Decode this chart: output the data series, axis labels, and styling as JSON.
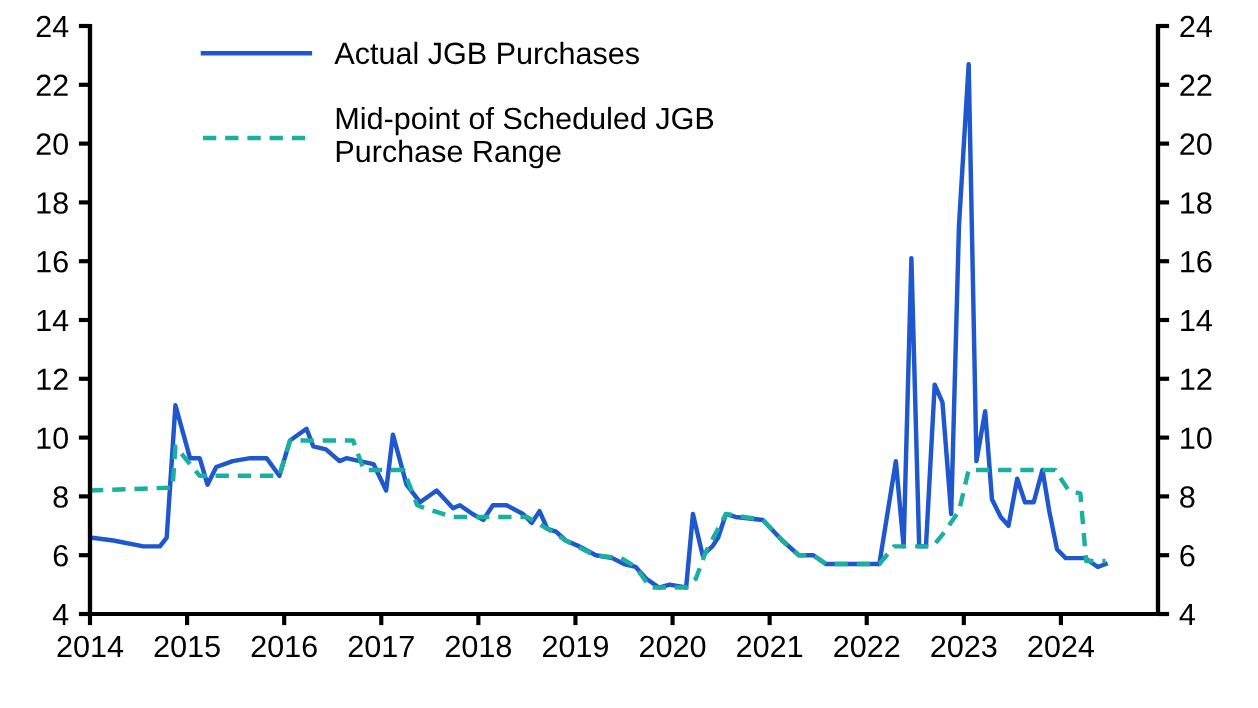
{
  "chart_data": {
    "type": "line",
    "xlim": [
      2014,
      2025
    ],
    "xticks": [
      2014,
      2015,
      2016,
      2017,
      2018,
      2019,
      2020,
      2021,
      2022,
      2023,
      2024
    ],
    "ylim": [
      4,
      24
    ],
    "yticks": [
      4,
      6,
      8,
      10,
      12,
      14,
      16,
      18,
      20,
      22,
      24
    ],
    "y2lim": [
      4,
      24
    ],
    "y2ticks": [
      4,
      6,
      8,
      10,
      12,
      14,
      16,
      18,
      20,
      22,
      24
    ],
    "grid": false,
    "legend": "top left",
    "series": [
      {
        "name": "Actual JGB Purchases",
        "color": "#1f57cf",
        "line_style": "solid",
        "x": [
          2014.0,
          2014.24,
          2014.55,
          2014.72,
          2014.79,
          2014.88,
          2015.03,
          2015.13,
          2015.21,
          2015.3,
          2015.47,
          2015.65,
          2015.82,
          2015.95,
          2016.06,
          2016.23,
          2016.3,
          2016.43,
          2016.57,
          2016.64,
          2016.92,
          2017.05,
          2017.12,
          2017.26,
          2017.4,
          2017.57,
          2017.74,
          2017.81,
          2017.94,
          2018.05,
          2018.15,
          2018.29,
          2018.46,
          2018.55,
          2018.63,
          2018.71,
          2018.8,
          2018.9,
          2019.04,
          2019.21,
          2019.38,
          2019.5,
          2019.62,
          2019.73,
          2019.86,
          2019.97,
          2020.14,
          2020.21,
          2020.31,
          2020.41,
          2020.47,
          2020.55,
          2020.65,
          2020.93,
          2021.13,
          2021.3,
          2021.45,
          2021.58,
          2022.13,
          2022.3,
          2022.38,
          2022.46,
          2022.54,
          2022.61,
          2022.7,
          2022.78,
          2022.87,
          2022.95,
          2023.05,
          2023.13,
          2023.22,
          2023.29,
          2023.38,
          2023.46,
          2023.55,
          2023.63,
          2023.72,
          2023.81,
          2023.88,
          2023.96,
          2024.05,
          2024.25,
          2024.38,
          2024.46
        ],
        "values": [
          6.6,
          6.5,
          6.3,
          6.3,
          6.6,
          11.1,
          9.3,
          9.3,
          8.4,
          9.0,
          9.2,
          9.3,
          9.3,
          8.7,
          9.9,
          10.3,
          9.7,
          9.6,
          9.2,
          9.3,
          9.1,
          8.2,
          10.1,
          8.4,
          7.8,
          8.2,
          7.6,
          7.7,
          7.4,
          7.2,
          7.7,
          7.7,
          7.4,
          7.1,
          7.5,
          6.9,
          6.8,
          6.5,
          6.3,
          6.0,
          5.9,
          5.7,
          5.6,
          5.2,
          4.9,
          5.0,
          4.9,
          7.4,
          6.0,
          6.3,
          6.6,
          7.4,
          7.3,
          7.2,
          6.5,
          6.0,
          6.0,
          5.7,
          5.7,
          9.2,
          6.3,
          16.1,
          6.3,
          6.3,
          11.8,
          11.2,
          7.4,
          17.2,
          22.7,
          9.2,
          10.9,
          7.9,
          7.3,
          7.0,
          8.6,
          7.8,
          7.8,
          8.9,
          7.5,
          6.2,
          5.9,
          5.9,
          5.6,
          5.7
        ]
      },
      {
        "name": "Mid-point of Scheduled JGB\nPurchase Range",
        "color": "#1ab0a0",
        "line_style": "dashed",
        "x": [
          2014.0,
          2014.85,
          2014.88,
          2015.13,
          2015.95,
          2016.06,
          2016.71,
          2016.82,
          2017.23,
          2017.37,
          2017.45,
          2017.74,
          2018.5,
          2018.71,
          2018.9,
          2019.2,
          2019.47,
          2019.62,
          2019.77,
          2020.14,
          2020.24,
          2020.34,
          2020.55,
          2020.93,
          2021.13,
          2021.3,
          2021.45,
          2021.58,
          2022.13,
          2022.28,
          2022.68,
          2022.78,
          2022.95,
          2023.05,
          2023.94,
          2024.08,
          2024.2,
          2024.26,
          2024.46
        ],
        "values": [
          8.2,
          8.3,
          9.7,
          8.7,
          8.7,
          9.9,
          9.9,
          8.9,
          8.9,
          7.7,
          7.6,
          7.3,
          7.3,
          6.9,
          6.5,
          6.0,
          5.9,
          5.6,
          4.9,
          4.9,
          5.2,
          6.1,
          7.4,
          7.2,
          6.5,
          6.0,
          6.0,
          5.7,
          5.7,
          6.3,
          6.3,
          6.7,
          7.5,
          8.9,
          8.9,
          8.2,
          8.1,
          5.8,
          5.8
        ]
      }
    ]
  }
}
